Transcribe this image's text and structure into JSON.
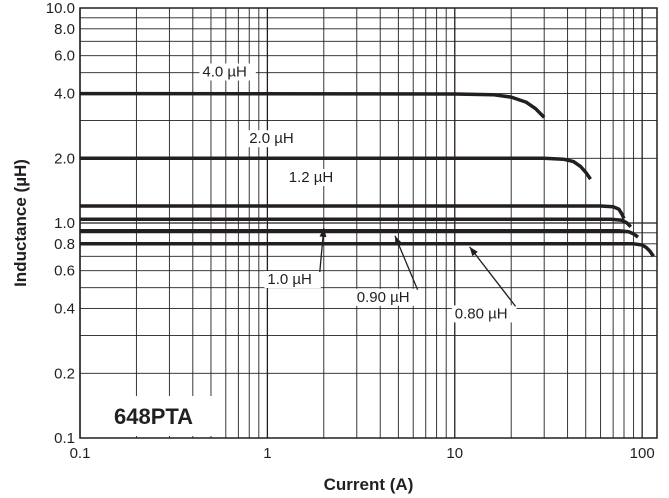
{
  "chart_data": {
    "type": "line",
    "title": "",
    "part_label": "648PTA",
    "xlabel": "Current (A)",
    "ylabel": "Inductance (µH)",
    "xscale": "log",
    "yscale": "log",
    "xlim": [
      0.1,
      120
    ],
    "ylim": [
      0.1,
      10
    ],
    "grid": true,
    "x_ticks": [
      {
        "value": 0.1,
        "label": "0.1"
      },
      {
        "value": 1,
        "label": "1"
      },
      {
        "value": 10,
        "label": "10"
      },
      {
        "value": 100,
        "label": "100"
      }
    ],
    "y_ticks": [
      {
        "value": 0.1,
        "label": "0.1"
      },
      {
        "value": 0.2,
        "label": "0.2"
      },
      {
        "value": 0.4,
        "label": "0.4"
      },
      {
        "value": 0.6,
        "label": "0.6"
      },
      {
        "value": 0.8,
        "label": "0.8"
      },
      {
        "value": 1.0,
        "label": "1.0"
      },
      {
        "value": 2.0,
        "label": "2.0"
      },
      {
        "value": 4.0,
        "label": "4.0"
      },
      {
        "value": 6.0,
        "label": "6.0"
      },
      {
        "value": 8.0,
        "label": "8.0"
      },
      {
        "value": 10.0,
        "label": "10.0"
      }
    ],
    "series": [
      {
        "name": "4.0 µH",
        "label_at": [
          0.45,
          4.8
        ],
        "points": [
          [
            0.1,
            4.0
          ],
          [
            10,
            3.98
          ],
          [
            16,
            3.95
          ],
          [
            20,
            3.85
          ],
          [
            24,
            3.65
          ],
          [
            27,
            3.4
          ],
          [
            30,
            3.1
          ]
        ]
      },
      {
        "name": "2.0 µH",
        "label_at": [
          0.8,
          2.35
        ],
        "points": [
          [
            0.1,
            2.0
          ],
          [
            30,
            2.0
          ],
          [
            38,
            1.98
          ],
          [
            43,
            1.93
          ],
          [
            47,
            1.83
          ],
          [
            50,
            1.72
          ],
          [
            53,
            1.6
          ]
        ]
      },
      {
        "name": "1.2 µH",
        "label_at": [
          1.3,
          1.55
        ],
        "points": [
          [
            0.1,
            1.2
          ],
          [
            60,
            1.2
          ],
          [
            70,
            1.19
          ],
          [
            75,
            1.16
          ],
          [
            78,
            1.1
          ],
          [
            80,
            1.05
          ]
        ]
      },
      {
        "name": "1.0 µH",
        "label_at": [
          1.0,
          0.52
        ],
        "arrow_to": [
          2.0,
          0.98
        ],
        "points": [
          [
            0.1,
            1.04
          ],
          [
            68,
            1.04
          ],
          [
            78,
            1.03
          ],
          [
            83,
            1.0
          ],
          [
            87,
            0.96
          ]
        ]
      },
      {
        "name": "0.90 µH",
        "label_at": [
          3.0,
          0.43
        ],
        "arrow_to": [
          4.8,
          0.9
        ],
        "points": [
          [
            0.1,
            0.92
          ],
          [
            75,
            0.92
          ],
          [
            85,
            0.91
          ],
          [
            90,
            0.89
          ],
          [
            95,
            0.86
          ]
        ]
      },
      {
        "name": "0.80 µH",
        "label_at": [
          10.0,
          0.36
        ],
        "arrow_to": [
          12.0,
          0.8
        ],
        "points": [
          [
            0.1,
            0.8
          ],
          [
            90,
            0.8
          ],
          [
            100,
            0.79
          ],
          [
            105,
            0.77
          ],
          [
            110,
            0.74
          ],
          [
            115,
            0.7
          ]
        ]
      }
    ]
  }
}
